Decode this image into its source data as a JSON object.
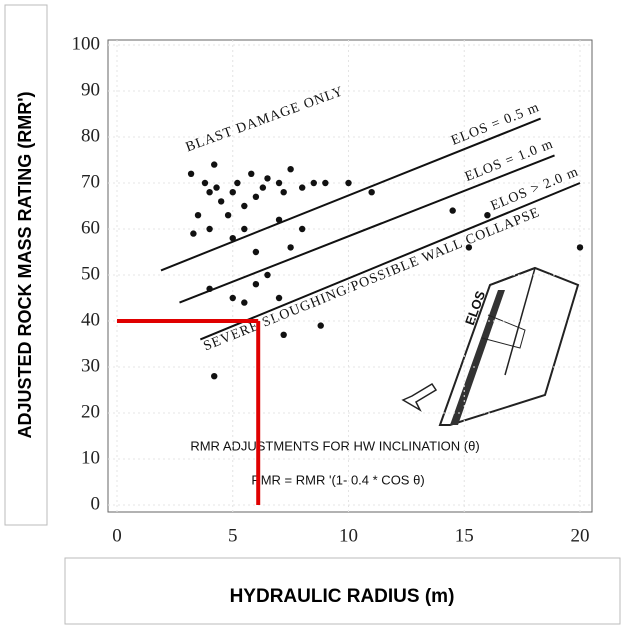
{
  "chart_data": {
    "type": "scatter",
    "y_label": "ADJUSTED ROCK MASS RATING (RMR')",
    "x_label": "HYDRAULIC RADIUS (m)",
    "xlim": [
      0,
      20
    ],
    "ylim": [
      0,
      100
    ],
    "xticks": [
      0,
      5,
      10,
      15,
      20
    ],
    "yticks": [
      0,
      10,
      20,
      30,
      40,
      50,
      60,
      70,
      80,
      90,
      100
    ],
    "grid": true,
    "series": [
      {
        "color": "#111111",
        "x": [
          3.2,
          3.3,
          3.8,
          4.0,
          4.2,
          4.5,
          4.3,
          5.0,
          5.2,
          5.5,
          5.8,
          6.0,
          6.3,
          6.5,
          7.0,
          7.2,
          7.5,
          8.0,
          8.5,
          4.8,
          5.0,
          5.5,
          6.0,
          7.0,
          7.5,
          8.0,
          9.0,
          4.0,
          5.0,
          5.5,
          6.0,
          7.0,
          7.2,
          8.8,
          4.2,
          10.0,
          11.0,
          15.2,
          20.0,
          14.5,
          16.0,
          4.0,
          6.5,
          3.5
        ],
        "values": [
          72,
          59,
          70,
          68,
          74,
          66,
          69,
          68,
          70,
          65,
          72,
          67,
          69,
          71,
          70,
          68,
          73,
          69,
          70,
          63,
          58,
          60,
          55,
          62,
          56,
          60,
          70,
          47,
          45,
          44,
          48,
          45,
          37,
          39,
          28,
          70,
          68,
          56,
          56,
          64,
          63,
          60,
          50,
          63
        ]
      }
    ],
    "lines": [
      {
        "label": "ELOS = 0.5 m",
        "color": "#111111",
        "x": [
          1.9,
          18.3
        ],
        "values": [
          51,
          84
        ]
      },
      {
        "label": "ELOS = 1.0 m",
        "color": "#111111",
        "x": [
          2.7,
          18.9
        ],
        "values": [
          44,
          76
        ]
      },
      {
        "label": "ELOS > 2.0 m",
        "color": "#111111",
        "x": [
          3.6,
          20
        ],
        "values": [
          36,
          70
        ]
      }
    ],
    "reference_lines": [
      {
        "color": "#e00000",
        "x": [
          0,
          6.1
        ],
        "values": [
          40,
          40
        ]
      },
      {
        "color": "#e00000",
        "x": [
          6.1,
          6.1
        ],
        "values": [
          0,
          40
        ]
      }
    ],
    "annotations": [
      "BLAST DAMAGE ONLY",
      "SEVERE SLOUGHING/POSSIBLE WALL COLLAPSE",
      "RMR ADJUSTMENTS FOR HW INCLINATION (θ)",
      "RMR = RMR '(1- 0.4 * COS θ)",
      "ELOS"
    ]
  }
}
